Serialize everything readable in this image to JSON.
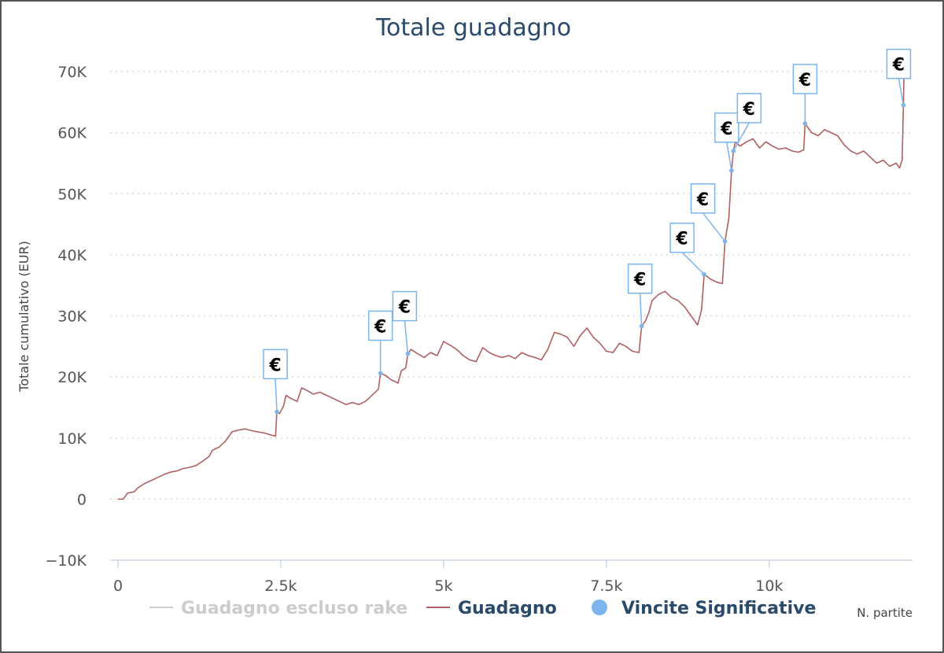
{
  "chart_data": {
    "type": "line",
    "title": "Totale guadagno",
    "ylabel": "Totale cumulativo (EUR)",
    "xlabel": "N. partite",
    "xlim": [
      0,
      12200
    ],
    "ylim": [
      -10000,
      70000
    ],
    "x_ticks": [
      0,
      2500,
      5000,
      7500,
      10000
    ],
    "x_tick_labels": [
      "0",
      "2.5k",
      "5k",
      "7.5k",
      "10k"
    ],
    "y_ticks": [
      -10000,
      0,
      10000,
      20000,
      30000,
      40000,
      50000,
      60000,
      70000
    ],
    "y_tick_labels": [
      "−10K",
      "0",
      "10K",
      "20K",
      "30K",
      "40K",
      "50K",
      "60K",
      "70K"
    ],
    "grid": "horizontal-dotted",
    "legend_placement": "bottom",
    "legend": [
      {
        "name": "Guadagno escluso rake",
        "color": "#cccccc",
        "marker": "line"
      },
      {
        "name": "Guadagno",
        "color": "#b06060",
        "marker": "line"
      },
      {
        "name": "Vincite Significative",
        "color": "#7cb5ec",
        "marker": "circle"
      }
    ],
    "series": [
      {
        "name": "Guadagno",
        "color": "#b06060",
        "points": [
          [
            0,
            0
          ],
          [
            80,
            0
          ],
          [
            150,
            1000
          ],
          [
            250,
            1200
          ],
          [
            300,
            1800
          ],
          [
            400,
            2500
          ],
          [
            500,
            3000
          ],
          [
            600,
            3500
          ],
          [
            700,
            4000
          ],
          [
            800,
            4400
          ],
          [
            900,
            4600
          ],
          [
            1000,
            5000
          ],
          [
            1100,
            5200
          ],
          [
            1200,
            5500
          ],
          [
            1300,
            6200
          ],
          [
            1400,
            7000
          ],
          [
            1450,
            8000
          ],
          [
            1550,
            8500
          ],
          [
            1650,
            9500
          ],
          [
            1750,
            11000
          ],
          [
            1850,
            11300
          ],
          [
            1950,
            11500
          ],
          [
            2050,
            11200
          ],
          [
            2150,
            11000
          ],
          [
            2250,
            10800
          ],
          [
            2350,
            10500
          ],
          [
            2420,
            10300
          ],
          [
            2440,
            14300
          ],
          [
            2480,
            14000
          ],
          [
            2540,
            15200
          ],
          [
            2580,
            17000
          ],
          [
            2650,
            16500
          ],
          [
            2750,
            16000
          ],
          [
            2820,
            18200
          ],
          [
            2900,
            17800
          ],
          [
            3000,
            17200
          ],
          [
            3100,
            17500
          ],
          [
            3200,
            17000
          ],
          [
            3300,
            16500
          ],
          [
            3400,
            16000
          ],
          [
            3500,
            15500
          ],
          [
            3600,
            15800
          ],
          [
            3700,
            15500
          ],
          [
            3800,
            16000
          ],
          [
            3900,
            17000
          ],
          [
            4000,
            18000
          ],
          [
            4030,
            20600
          ],
          [
            4100,
            20300
          ],
          [
            4200,
            19500
          ],
          [
            4300,
            19000
          ],
          [
            4350,
            21000
          ],
          [
            4420,
            21500
          ],
          [
            4450,
            23800
          ],
          [
            4500,
            24500
          ],
          [
            4600,
            23800
          ],
          [
            4700,
            23200
          ],
          [
            4800,
            24000
          ],
          [
            4900,
            23500
          ],
          [
            5000,
            25800
          ],
          [
            5100,
            25200
          ],
          [
            5200,
            24500
          ],
          [
            5300,
            23500
          ],
          [
            5400,
            22800
          ],
          [
            5500,
            22500
          ],
          [
            5600,
            24800
          ],
          [
            5700,
            24000
          ],
          [
            5800,
            23500
          ],
          [
            5900,
            23200
          ],
          [
            6000,
            23500
          ],
          [
            6100,
            23000
          ],
          [
            6200,
            24000
          ],
          [
            6300,
            23500
          ],
          [
            6400,
            23200
          ],
          [
            6500,
            22800
          ],
          [
            6600,
            24500
          ],
          [
            6700,
            27300
          ],
          [
            6800,
            27000
          ],
          [
            6900,
            26500
          ],
          [
            7000,
            25000
          ],
          [
            7100,
            26800
          ],
          [
            7200,
            28000
          ],
          [
            7300,
            26500
          ],
          [
            7400,
            25500
          ],
          [
            7500,
            24200
          ],
          [
            7600,
            24000
          ],
          [
            7700,
            25500
          ],
          [
            7800,
            25000
          ],
          [
            7900,
            24200
          ],
          [
            8000,
            24000
          ],
          [
            8040,
            28300
          ],
          [
            8100,
            29200
          ],
          [
            8150,
            30500
          ],
          [
            8200,
            32500
          ],
          [
            8300,
            33500
          ],
          [
            8400,
            34000
          ],
          [
            8500,
            33000
          ],
          [
            8600,
            32500
          ],
          [
            8700,
            31500
          ],
          [
            8800,
            30000
          ],
          [
            8900,
            28500
          ],
          [
            8960,
            31000
          ],
          [
            9000,
            36800
          ],
          [
            9100,
            36000
          ],
          [
            9200,
            35500
          ],
          [
            9280,
            35300
          ],
          [
            9320,
            42200
          ],
          [
            9380,
            46000
          ],
          [
            9420,
            53800
          ],
          [
            9450,
            57000
          ],
          [
            9480,
            58500
          ],
          [
            9550,
            57800
          ],
          [
            9650,
            58500
          ],
          [
            9750,
            59000
          ],
          [
            9850,
            57500
          ],
          [
            9950,
            58500
          ],
          [
            10050,
            57800
          ],
          [
            10150,
            57300
          ],
          [
            10250,
            57500
          ],
          [
            10350,
            57000
          ],
          [
            10450,
            56800
          ],
          [
            10530,
            57200
          ],
          [
            10550,
            61500
          ],
          [
            10650,
            60000
          ],
          [
            10750,
            59500
          ],
          [
            10850,
            60500
          ],
          [
            10950,
            60000
          ],
          [
            11050,
            59500
          ],
          [
            11150,
            58000
          ],
          [
            11250,
            57000
          ],
          [
            11350,
            56500
          ],
          [
            11450,
            57000
          ],
          [
            11550,
            56000
          ],
          [
            11650,
            55000
          ],
          [
            11750,
            55500
          ],
          [
            11850,
            54500
          ],
          [
            11950,
            55000
          ],
          [
            12000,
            54200
          ],
          [
            12040,
            55500
          ],
          [
            12060,
            64500
          ],
          [
            12070,
            70000
          ]
        ]
      },
      {
        "name": "Vincite Significative",
        "color": "#7cb5ec",
        "points": [
          [
            2440,
            14300
          ],
          [
            4030,
            20600
          ],
          [
            4450,
            23800
          ],
          [
            8040,
            28300
          ],
          [
            9000,
            36800
          ],
          [
            9320,
            42200
          ],
          [
            9420,
            53800
          ],
          [
            9450,
            57000
          ],
          [
            10550,
            61500
          ],
          [
            12060,
            64500
          ]
        ],
        "labels": [
          "€",
          "€",
          "€",
          "€",
          "€",
          "€",
          "€",
          "€",
          "€",
          "€"
        ]
      }
    ]
  }
}
